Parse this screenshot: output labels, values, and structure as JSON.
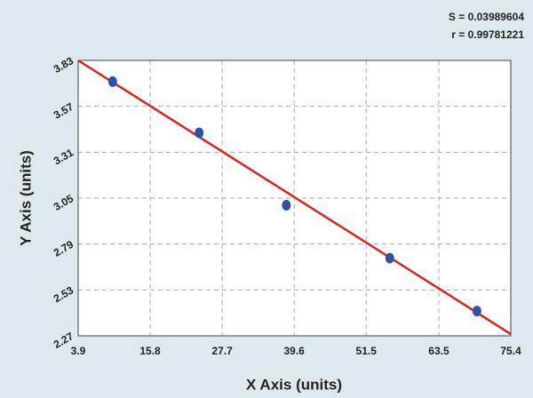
{
  "chart_data": {
    "type": "scatter",
    "annotations": [
      "S = 0.03989604",
      "r = 0.99781221"
    ],
    "x_label": "X Axis (units)",
    "y_label": "Y Axis (units)",
    "x": [
      9.6,
      23.9,
      38.3,
      55.4,
      69.8
    ],
    "values": [
      3.71,
      3.42,
      3.01,
      2.71,
      2.41
    ],
    "color": "#2f4fa8",
    "fit_line": {
      "x": [
        3.9,
        75.4
      ],
      "values": [
        3.83,
        2.28
      ],
      "color": "#e02222"
    },
    "xlim": [
      3.9,
      75.4
    ],
    "xticks": [
      3.9,
      15.8,
      27.7,
      39.6,
      51.5,
      63.5,
      75.4
    ],
    "ylim": [
      2.27,
      3.83
    ],
    "yticks": [
      2.27,
      2.53,
      2.79,
      3.05,
      3.31,
      3.57,
      3.83
    ],
    "grid": true
  }
}
